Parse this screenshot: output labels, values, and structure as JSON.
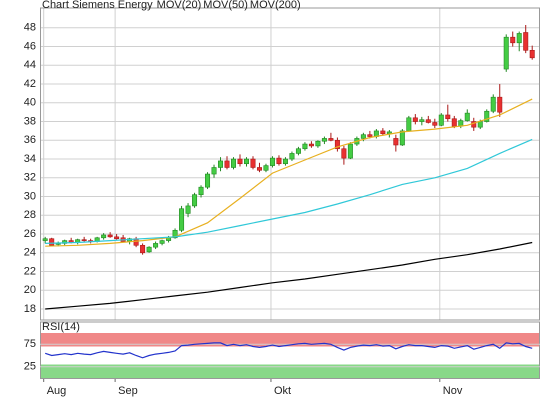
{
  "chart_data": [
    {
      "type": "candlestick",
      "title": "Chart Siemens Energy",
      "title_color": "#e0501e",
      "color_up": "#44cc44",
      "color_down": "#e83030",
      "xlim": [
        -0.8,
        76.2
      ],
      "ylim": [
        16.83,
        49.9
      ],
      "yticks": [
        18,
        20,
        22,
        24,
        26,
        28,
        30,
        32,
        34,
        36,
        38,
        40,
        42,
        44,
        46,
        48
      ],
      "grid": true,
      "ohlc": [
        [
          25.3,
          25.7,
          25.0,
          25.5
        ],
        [
          25.5,
          25.6,
          24.7,
          24.8
        ],
        [
          24.9,
          25.2,
          24.7,
          25.0
        ],
        [
          25.0,
          25.4,
          24.8,
          25.3
        ],
        [
          25.3,
          25.6,
          25.0,
          25.1
        ],
        [
          25.1,
          25.5,
          24.9,
          25.4
        ],
        [
          25.4,
          25.7,
          25.2,
          25.3
        ],
        [
          25.3,
          25.5,
          25.0,
          25.2
        ],
        [
          25.2,
          25.7,
          25.1,
          25.6
        ],
        [
          25.6,
          26.1,
          25.4,
          25.9
        ],
        [
          25.9,
          26.2,
          25.6,
          25.7
        ],
        [
          25.7,
          26.0,
          25.4,
          25.5
        ],
        [
          25.6,
          25.9,
          25.1,
          25.2
        ],
        [
          25.2,
          25.6,
          24.9,
          25.5
        ],
        [
          25.5,
          25.7,
          24.6,
          24.8
        ],
        [
          24.8,
          25.0,
          23.8,
          24.0
        ],
        [
          24.1,
          24.7,
          24.0,
          24.6
        ],
        [
          24.6,
          25.2,
          24.4,
          25.0
        ],
        [
          25.0,
          25.4,
          24.8,
          25.3
        ],
        [
          25.3,
          25.8,
          25.1,
          25.6
        ],
        [
          25.6,
          26.6,
          25.5,
          26.4
        ],
        [
          26.4,
          29.0,
          26.2,
          28.7
        ],
        [
          28.2,
          29.3,
          27.8,
          29.0
        ],
        [
          29.0,
          30.4,
          28.8,
          30.2
        ],
        [
          30.2,
          31.2,
          29.9,
          31.0
        ],
        [
          31.0,
          32.6,
          30.8,
          32.4
        ],
        [
          32.4,
          33.4,
          32.0,
          33.1
        ],
        [
          33.1,
          34.2,
          32.7,
          33.8
        ],
        [
          33.8,
          34.3,
          32.9,
          33.1
        ],
        [
          33.1,
          34.2,
          32.9,
          34.0
        ],
        [
          34.0,
          34.5,
          33.2,
          33.5
        ],
        [
          33.5,
          34.2,
          33.2,
          34.0
        ],
        [
          34.0,
          34.3,
          32.9,
          33.1
        ],
        [
          33.1,
          33.6,
          32.6,
          32.8
        ],
        [
          32.8,
          33.5,
          32.6,
          33.3
        ],
        [
          33.3,
          34.3,
          33.1,
          34.1
        ],
        [
          34.1,
          34.4,
          33.3,
          33.5
        ],
        [
          33.5,
          34.2,
          33.3,
          34.0
        ],
        [
          34.0,
          34.8,
          33.8,
          34.6
        ],
        [
          34.6,
          35.3,
          34.4,
          35.1
        ],
        [
          35.1,
          35.8,
          34.9,
          35.6
        ],
        [
          35.6,
          35.9,
          35.2,
          35.4
        ],
        [
          35.4,
          36.0,
          35.2,
          35.9
        ],
        [
          35.9,
          36.4,
          35.6,
          36.2
        ],
        [
          36.2,
          36.8,
          35.9,
          36.0
        ],
        [
          36.0,
          36.3,
          34.8,
          35.1
        ],
        [
          35.1,
          35.4,
          33.4,
          34.1
        ],
        [
          34.1,
          35.8,
          34.0,
          35.6
        ],
        [
          35.6,
          36.4,
          35.4,
          36.2
        ],
        [
          36.2,
          36.8,
          35.9,
          36.6
        ],
        [
          36.6,
          37.0,
          36.2,
          36.4
        ],
        [
          36.4,
          37.2,
          36.2,
          37.0
        ],
        [
          37.0,
          37.3,
          36.5,
          36.7
        ],
        [
          36.7,
          37.1,
          36.3,
          36.9
        ],
        [
          36.2,
          36.6,
          34.8,
          35.5
        ],
        [
          35.5,
          37.2,
          35.4,
          37.0
        ],
        [
          37.0,
          38.6,
          36.9,
          38.4
        ],
        [
          38.4,
          38.8,
          37.7,
          38.0
        ],
        [
          38.0,
          38.5,
          37.6,
          38.2
        ],
        [
          38.2,
          38.6,
          37.8,
          37.9
        ],
        [
          37.9,
          38.3,
          37.3,
          37.6
        ],
        [
          37.6,
          38.9,
          37.5,
          38.7
        ],
        [
          38.7,
          39.8,
          38.0,
          38.3
        ],
        [
          38.3,
          38.6,
          37.3,
          37.5
        ],
        [
          37.5,
          38.3,
          37.3,
          38.1
        ],
        [
          38.1,
          39.3,
          38.0,
          38.9
        ],
        [
          38.0,
          38.4,
          37.0,
          37.4
        ],
        [
          37.4,
          38.2,
          37.2,
          38.0
        ],
        [
          38.0,
          39.3,
          37.9,
          39.1
        ],
        [
          39.1,
          40.9,
          38.9,
          40.6
        ],
        [
          40.6,
          42.0,
          38.5,
          39.0
        ],
        [
          43.6,
          47.3,
          43.3,
          47.0
        ],
        [
          47.0,
          47.6,
          46.0,
          46.4
        ],
        [
          46.4,
          47.6,
          45.5,
          47.4
        ],
        [
          47.5,
          48.3,
          45.3,
          45.6
        ],
        [
          45.6,
          46.1,
          44.6,
          44.8
        ]
      ],
      "series": [
        {
          "name": "MOV(20)",
          "color": "#e8b020",
          "x": [
            0,
            5,
            10,
            15,
            20,
            25,
            30,
            35,
            40,
            45,
            50,
            55,
            60,
            65,
            70,
            75
          ],
          "values": [
            24.7,
            24.8,
            25.0,
            25.3,
            25.7,
            27.2,
            29.8,
            32.5,
            33.9,
            35.3,
            36.3,
            36.9,
            37.2,
            37.6,
            38.7,
            40.4
          ]
        },
        {
          "name": "MOV(50)",
          "color": "#30c8d8",
          "x": [
            0,
            5,
            10,
            15,
            20,
            25,
            30,
            35,
            40,
            45,
            50,
            55,
            60,
            65,
            70,
            75
          ],
          "values": [
            25.0,
            25.1,
            25.3,
            25.5,
            25.7,
            26.2,
            26.9,
            27.6,
            28.3,
            29.2,
            30.2,
            31.3,
            32.0,
            33.0,
            34.6,
            36.1
          ]
        },
        {
          "name": "MOV(200)",
          "color": "#000000",
          "x": [
            0,
            5,
            10,
            15,
            20,
            25,
            30,
            35,
            40,
            45,
            50,
            55,
            60,
            65,
            70,
            75
          ],
          "values": [
            18.0,
            18.3,
            18.6,
            19.0,
            19.4,
            19.8,
            20.3,
            20.8,
            21.2,
            21.7,
            22.2,
            22.7,
            23.3,
            23.8,
            24.4,
            25.1
          ]
        }
      ]
    },
    {
      "type": "line",
      "title": "RSI(14)",
      "xlim": [
        -0.8,
        76.2
      ],
      "ylim": [
        0,
        100
      ],
      "yticks": [
        25,
        75
      ],
      "grid": true,
      "xticks": [
        {
          "value": 1,
          "label": "Aug"
        },
        {
          "value": 12,
          "label": "Sep"
        },
        {
          "value": 36,
          "label": "Okt"
        },
        {
          "value": 62,
          "label": "Nov"
        }
      ],
      "bands": [
        {
          "from": 70,
          "to": 100,
          "color": "#f08888"
        },
        {
          "from": 0,
          "to": 30,
          "color": "#88d888"
        }
      ],
      "series": [
        {
          "name": "RSI(14)",
          "color": "#2233cc",
          "values": [
            55,
            50,
            52,
            54,
            52,
            55,
            53,
            52,
            56,
            59,
            57,
            55,
            53,
            56,
            50,
            45,
            50,
            53,
            55,
            57,
            60,
            72,
            73,
            75,
            76,
            77,
            78,
            78,
            72,
            75,
            72,
            74,
            70,
            68,
            70,
            73,
            70,
            72,
            74,
            76,
            77,
            75,
            76,
            77,
            75,
            68,
            62,
            68,
            71,
            73,
            72,
            74,
            71,
            72,
            65,
            70,
            74,
            72,
            72,
            70,
            68,
            72,
            71,
            66,
            69,
            72,
            64,
            68,
            72,
            75,
            66,
            78,
            76,
            77,
            70,
            66
          ]
        }
      ]
    }
  ]
}
